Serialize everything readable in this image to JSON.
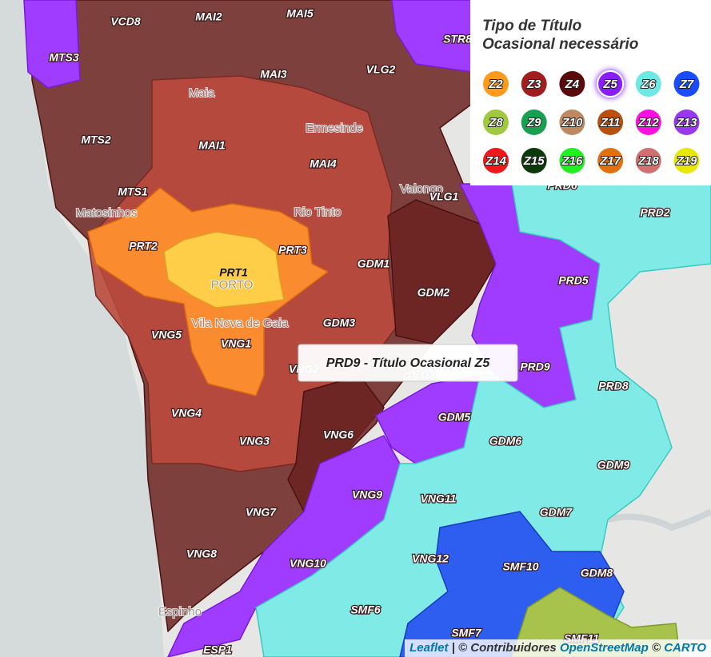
{
  "legend": {
    "title": [
      "Tipo de Título",
      "Ocasional necessário"
    ],
    "items": [
      {
        "label": "Z2",
        "color": "#ff9a1a"
      },
      {
        "label": "Z3",
        "color": "#a01e1e"
      },
      {
        "label": "Z4",
        "color": "#5a0a0a"
      },
      {
        "label": "Z5",
        "color": "#8a1aff",
        "selected": true
      },
      {
        "label": "Z6",
        "color": "#6ee8e4"
      },
      {
        "label": "Z7",
        "color": "#1a4cff"
      },
      {
        "label": "Z8",
        "color": "#a0c840"
      },
      {
        "label": "Z9",
        "color": "#18a050"
      },
      {
        "label": "Z10",
        "color": "#c08860"
      },
      {
        "label": "Z11",
        "color": "#b85010"
      },
      {
        "label": "Z12",
        "color": "#ff10e0"
      },
      {
        "label": "Z13",
        "color": "#9a38f0"
      },
      {
        "label": "Z14",
        "color": "#f01818"
      },
      {
        "label": "Z15",
        "color": "#0a3a0a"
      },
      {
        "label": "Z16",
        "color": "#20f020"
      },
      {
        "label": "Z17",
        "color": "#e07010"
      },
      {
        "label": "Z18",
        "color": "#d07070"
      },
      {
        "label": "Z19",
        "color": "#e8e800"
      }
    ]
  },
  "zones": [
    "VCD8",
    "MAI2",
    "MAI5",
    "STR8",
    "MTS3",
    "MAI3",
    "VLG2",
    "MTS2",
    "MAI1",
    "MAI4",
    "VLG1",
    "MTS1",
    "PRD6",
    "PRD2",
    "PRT2",
    "PRT1",
    "PRT3",
    "GDM1",
    "PRD5",
    "GDM2",
    "VNG5",
    "GDM3",
    "VNG1",
    "VNG2",
    "GDM4",
    "PRD9",
    "PRD8",
    "VNG4",
    "GDM5",
    "VNG6",
    "VNG3",
    "GDM6",
    "GDM9",
    "VNG9",
    "VNG11",
    "GDM7",
    "VNG7",
    "VNG8",
    "VNG12",
    "SMF10",
    "VNG10",
    "GDM8",
    "SMF6",
    "SMF7",
    "SMF11",
    "ESP1"
  ],
  "places": [
    "Maia",
    "Ermesinde",
    "Valongo",
    "Matosinhos",
    "Rio Tinto",
    "PORTO",
    "Vila Nova de Gaia",
    "Espinho"
  ],
  "tooltip": "PRD9 - Título Ocasional Z5",
  "attribution": [
    "Leaflet",
    "| © Contribuidores",
    "OpenStreetMap",
    "©",
    "CARTO"
  ]
}
